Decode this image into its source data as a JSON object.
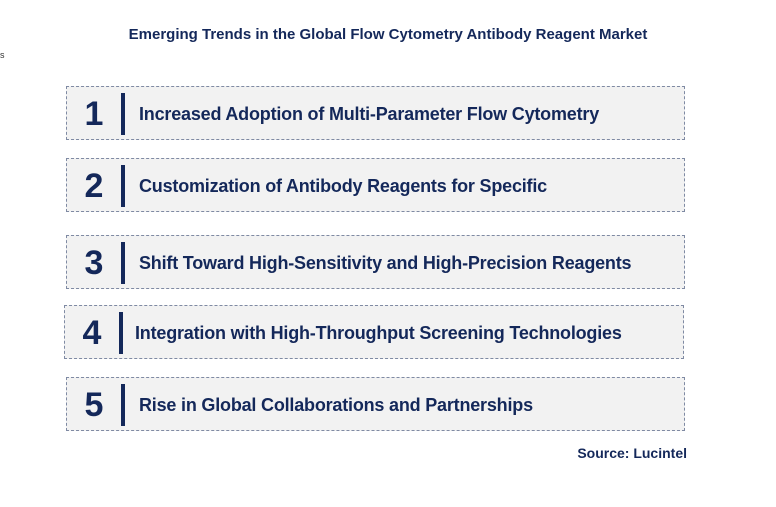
{
  "title": "Emerging Trends in the Global Flow Cytometry Antibody Reagent Market",
  "stray_mark": "s",
  "trends": [
    {
      "number": "1",
      "label": "Increased Adoption of Multi-Parameter Flow Cytometry"
    },
    {
      "number": "2",
      "label": "Customization of Antibody Reagents for Specific"
    },
    {
      "number": "3",
      "label": "Shift Toward High-Sensitivity and High-Precision Reagents"
    },
    {
      "number": "4",
      "label": "Integration with High-Throughput Screening Technologies"
    },
    {
      "number": "5",
      "label": "Rise in Global Collaborations and Partnerships"
    }
  ],
  "source": "Source: Lucintel",
  "colors": {
    "text": "#14285a",
    "box_fill": "#f2f2f2",
    "box_border": "#7f8aa3"
  }
}
